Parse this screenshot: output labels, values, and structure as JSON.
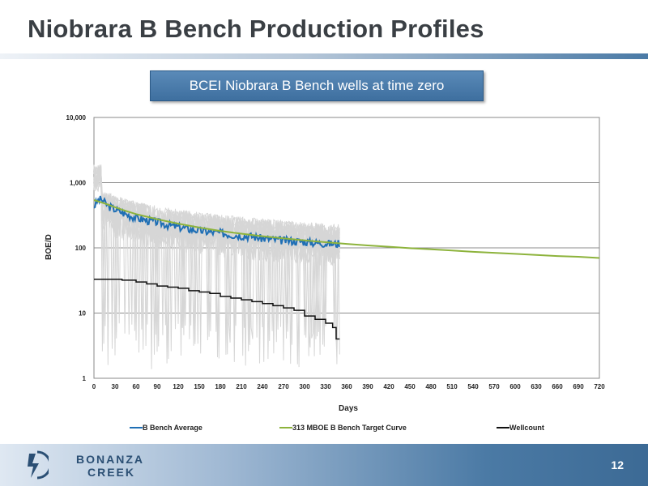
{
  "slide": {
    "title": "Niobrara B Bench Production Profiles",
    "subtitle": "BCEI Niobrara B Bench wells at time zero",
    "page_number": "12",
    "logo_line1": "BONANZA",
    "logo_line2": "CREEK"
  },
  "colors": {
    "average": "#1f6fb5",
    "target": "#8db33c",
    "wellcount": "#111111",
    "individual_wells": "#d6d6d6",
    "accent": "#3e6f9f"
  },
  "chart_data": {
    "type": "line",
    "xlabel": "Days",
    "ylabel": "BOE/D",
    "xlim": [
      0,
      720
    ],
    "ylim": [
      1,
      10000
    ],
    "y_scale": "log",
    "x_ticks": [
      0,
      30,
      60,
      90,
      120,
      150,
      180,
      210,
      240,
      270,
      300,
      330,
      360,
      390,
      420,
      450,
      480,
      510,
      540,
      570,
      600,
      630,
      660,
      690,
      720
    ],
    "x_tick_labels": [
      "0",
      "30",
      "60",
      "90",
      "120",
      "150",
      "180",
      "210",
      "240",
      "270",
      "300",
      "330",
      "360",
      "390",
      "420",
      "450",
      "480",
      "510",
      "540",
      "570",
      "600",
      "630",
      "660",
      "690",
      "720"
    ],
    "y_ticks": [
      1,
      10,
      100,
      1000,
      10000
    ],
    "y_tick_labels": [
      "1",
      "10",
      "100",
      "1,000",
      "10,000"
    ],
    "grid": "horizontal",
    "legend_position": "bottom",
    "series": [
      {
        "name": "B Bench Average",
        "x": [
          0,
          5,
          10,
          15,
          20,
          30,
          45,
          60,
          75,
          90,
          105,
          120,
          135,
          150,
          165,
          180,
          195,
          210,
          225,
          240,
          255,
          270,
          285,
          300,
          315,
          330,
          345,
          350
        ],
        "y": [
          430,
          520,
          560,
          500,
          440,
          390,
          330,
          290,
          265,
          250,
          225,
          210,
          195,
          185,
          175,
          170,
          160,
          155,
          150,
          140,
          135,
          130,
          128,
          125,
          120,
          118,
          115,
          120
        ]
      },
      {
        "name": "313 MBOE B Bench Target Curve",
        "x": [
          0,
          10,
          20,
          30,
          45,
          60,
          90,
          120,
          150,
          180,
          210,
          240,
          270,
          300,
          330,
          360,
          390,
          420,
          450,
          480,
          510,
          540,
          570,
          600,
          630,
          660,
          690,
          720
        ],
        "y": [
          540,
          500,
          460,
          420,
          370,
          330,
          275,
          235,
          205,
          182,
          165,
          151,
          140,
          130,
          122,
          115,
          109,
          104,
          99,
          95,
          91,
          87,
          84,
          81,
          78,
          75,
          73,
          70
        ]
      },
      {
        "name": "Wellcount",
        "x": [
          0,
          20,
          40,
          60,
          75,
          90,
          105,
          120,
          135,
          150,
          165,
          180,
          195,
          210,
          225,
          240,
          255,
          270,
          285,
          300,
          315,
          330,
          340,
          345,
          350
        ],
        "y": [
          33,
          33,
          32,
          30,
          28,
          26,
          25,
          24,
          22,
          21,
          20,
          18,
          17,
          16,
          15,
          14,
          13,
          12,
          11,
          9,
          8,
          7,
          6,
          4,
          4
        ]
      }
    ]
  }
}
